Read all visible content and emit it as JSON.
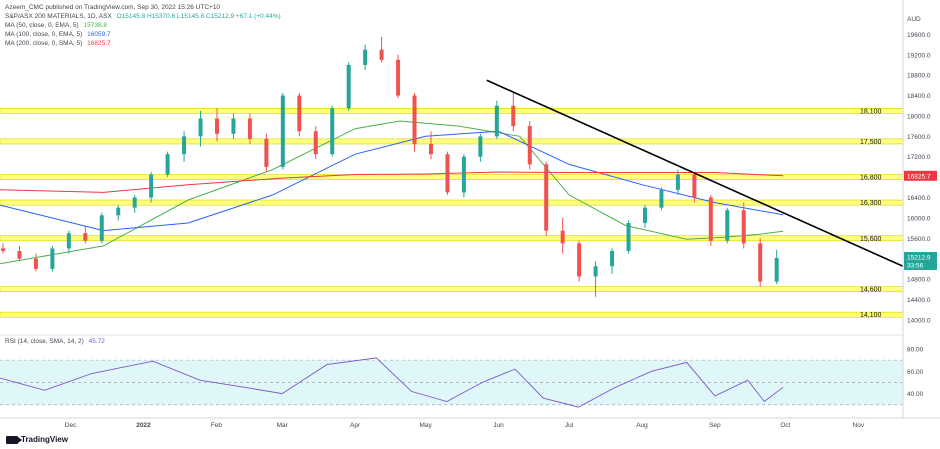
{
  "header": {
    "publisher": "Azeem_CMC published on TradingView.com, Sep 30, 2022 15:26 UTC+10",
    "symbol_line": {
      "name": "S&P/ASX 200 MATERIALS, 1D, ASX",
      "ohlc": "O15145.8 H15370.6 L15145.8 C15212.9 +67.1 (+0.44%)",
      "color": "#26a69a"
    },
    "indicators": [
      {
        "label": "MA (50, close, 0, EMA, 5)",
        "value": "15738.8",
        "color": "#4caf50"
      },
      {
        "label": "MA (100, close, 0, EMA, 5)",
        "value": "16059.7",
        "color": "#2962ff"
      },
      {
        "label": "MA (200, close, 0, SMA, 5)",
        "value": "16825.7",
        "color": "#f23645"
      }
    ]
  },
  "footer": {
    "logo_text": "TradingView"
  },
  "colors": {
    "up": "#26a69a",
    "down": "#ef5350",
    "zone": "#ffff80",
    "zone_border": "#d8d200",
    "trendline": "#000000",
    "rsi": "#7e57c2",
    "rsi_band": "#e0f7fa"
  },
  "chart_data": {
    "type": "candlestick",
    "currency": "AUD",
    "price_axis": {
      "ticks": [
        "19600.0",
        "19200.0",
        "18800.0",
        "18400.0",
        "18000.0",
        "17600.0",
        "17200.0",
        "16800.0",
        "16400.0",
        "16000.0",
        "15600.0",
        "15200.0",
        "14800.0",
        "14400.0",
        "14000.0"
      ],
      "ylim": [
        13800,
        20000
      ]
    },
    "time_axis": {
      "ticks": [
        {
          "label": "Dec",
          "date": "2021-12-01"
        },
        {
          "label": "2022",
          "date": "2022-01-01"
        },
        {
          "label": "Feb",
          "date": "2022-02-01"
        },
        {
          "label": "Mar",
          "date": "2022-03-01"
        },
        {
          "label": "Apr",
          "date": "2022-04-01"
        },
        {
          "label": "May",
          "date": "2022-05-01"
        },
        {
          "label": "Jun",
          "date": "2022-06-01"
        },
        {
          "label": "Jul",
          "date": "2022-07-01"
        },
        {
          "label": "Aug",
          "date": "2022-08-01"
        },
        {
          "label": "Sep",
          "date": "2022-09-01"
        },
        {
          "label": "Oct",
          "date": "2022-10-01"
        },
        {
          "label": "Nov",
          "date": "2022-11-01"
        }
      ],
      "xlim": [
        "2021-11-01",
        "2022-11-20"
      ]
    },
    "candles": [
      [
        "2021-11-01",
        15400,
        15500,
        15300,
        15350
      ],
      [
        "2021-11-08",
        15350,
        15450,
        15150,
        15200
      ],
      [
        "2021-11-15",
        15200,
        15300,
        14950,
        15000
      ],
      [
        "2021-11-22",
        15000,
        15450,
        14950,
        15400
      ],
      [
        "2021-11-29",
        15400,
        15750,
        15300,
        15700
      ],
      [
        "2021-12-06",
        15700,
        15850,
        15500,
        15550
      ],
      [
        "2021-12-13",
        15550,
        16100,
        15500,
        16050
      ],
      [
        "2021-12-20",
        16050,
        16250,
        15950,
        16200
      ],
      [
        "2021-12-27",
        16200,
        16450,
        16100,
        16400
      ],
      [
        "2022-01-03",
        16400,
        16900,
        16300,
        16850
      ],
      [
        "2022-01-10",
        16850,
        17300,
        16800,
        17250
      ],
      [
        "2022-01-17",
        17250,
        17700,
        17100,
        17600
      ],
      [
        "2022-01-24",
        17600,
        18100,
        17400,
        17950
      ],
      [
        "2022-01-31",
        17950,
        18150,
        17500,
        17650
      ],
      [
        "2022-02-07",
        17650,
        18050,
        17550,
        17950
      ],
      [
        "2022-02-14",
        17950,
        18050,
        17450,
        17550
      ],
      [
        "2022-02-21",
        17550,
        17650,
        16900,
        17000
      ],
      [
        "2022-02-28",
        17000,
        18450,
        16950,
        18400
      ],
      [
        "2022-03-07",
        18400,
        18450,
        17600,
        17700
      ],
      [
        "2022-03-14",
        17700,
        17800,
        17150,
        17250
      ],
      [
        "2022-03-21",
        17250,
        18200,
        17200,
        18150
      ],
      [
        "2022-03-28",
        18150,
        19050,
        18100,
        19000
      ],
      [
        "2022-04-04",
        19000,
        19400,
        18900,
        19300
      ],
      [
        "2022-04-11",
        19300,
        19550,
        19050,
        19100
      ],
      [
        "2022-04-18",
        19100,
        19200,
        18350,
        18400
      ],
      [
        "2022-04-25",
        18400,
        18450,
        17300,
        17450
      ],
      [
        "2022-05-02",
        17450,
        17700,
        17150,
        17250
      ],
      [
        "2022-05-09",
        17250,
        17300,
        16450,
        16500
      ],
      [
        "2022-05-16",
        16500,
        17250,
        16400,
        17200
      ],
      [
        "2022-05-23",
        17200,
        17650,
        17100,
        17600
      ],
      [
        "2022-05-30",
        17600,
        18300,
        17550,
        18200
      ],
      [
        "2022-06-06",
        18200,
        18450,
        17700,
        17800
      ],
      [
        "2022-06-13",
        17800,
        17900,
        16950,
        17050
      ],
      [
        "2022-06-20",
        17050,
        17100,
        15650,
        15750
      ],
      [
        "2022-06-27",
        15750,
        16000,
        15300,
        15500
      ],
      [
        "2022-07-04",
        15500,
        15550,
        14750,
        14850
      ],
      [
        "2022-07-11",
        14850,
        15150,
        14450,
        15050
      ],
      [
        "2022-07-18",
        15050,
        15400,
        14900,
        15350
      ],
      [
        "2022-07-25",
        15350,
        15950,
        15300,
        15900
      ],
      [
        "2022-08-01",
        15900,
        16250,
        15800,
        16200
      ],
      [
        "2022-08-08",
        16200,
        16600,
        16150,
        16550
      ],
      [
        "2022-08-15",
        16550,
        16950,
        16450,
        16850
      ],
      [
        "2022-08-22",
        16850,
        16900,
        16300,
        16400
      ],
      [
        "2022-08-29",
        16400,
        16450,
        15450,
        15550
      ],
      [
        "2022-09-05",
        15550,
        16200,
        15500,
        16150
      ],
      [
        "2022-09-12",
        16150,
        16300,
        15400,
        15500
      ],
      [
        "2022-09-19",
        15500,
        15600,
        14650,
        14750
      ],
      [
        "2022-09-26",
        14750,
        15370,
        14700,
        15213
      ]
    ],
    "series": [
      {
        "name": "MA (50, close, 0, EMA, 5)",
        "color": "#4caf50",
        "x": [
          "2021-11-01",
          "2021-12-15",
          "2022-01-20",
          "2022-02-25",
          "2022-04-01",
          "2022-04-20",
          "2022-05-15",
          "2022-06-10",
          "2022-07-01",
          "2022-07-25",
          "2022-08-20",
          "2022-09-05",
          "2022-09-20",
          "2022-09-30"
        ],
        "y": [
          15100,
          15450,
          16350,
          16950,
          17750,
          17900,
          17800,
          17600,
          16450,
          15850,
          15580,
          15620,
          15680,
          15739
        ]
      },
      {
        "name": "MA (100, close, 0, EMA, 5)",
        "color": "#2962ff",
        "x": [
          "2021-11-01",
          "2021-12-15",
          "2022-01-20",
          "2022-02-25",
          "2022-04-01",
          "2022-05-01",
          "2022-06-01",
          "2022-07-01",
          "2022-08-01",
          "2022-09-01",
          "2022-09-30"
        ],
        "y": [
          16250,
          15750,
          15900,
          16450,
          17250,
          17600,
          17700,
          17050,
          16650,
          16300,
          16060
        ]
      },
      {
        "name": "MA (200, close, 0, SMA, 5)",
        "color": "#f23645",
        "x": [
          "2021-11-01",
          "2021-12-15",
          "2022-01-20",
          "2022-03-01",
          "2022-04-01",
          "2022-05-01",
          "2022-06-01",
          "2022-07-01",
          "2022-08-01",
          "2022-09-01",
          "2022-09-30"
        ],
        "y": [
          16550,
          16500,
          16650,
          16780,
          16850,
          16860,
          16900,
          16890,
          16890,
          16890,
          16826
        ]
      }
    ],
    "horizontal_zones": [
      {
        "label": "18,100",
        "value": 18100
      },
      {
        "label": "17,500",
        "value": 17500
      },
      {
        "label": "16,800",
        "value": 16800
      },
      {
        "label": "16,300",
        "value": 16300
      },
      {
        "label": "15,600",
        "value": 15600
      },
      {
        "label": "14,600",
        "value": 14600
      },
      {
        "label": "14,100",
        "value": 14100
      }
    ],
    "trendline": {
      "from": {
        "date": "2022-05-27",
        "value": 18700
      },
      "to": {
        "date": "2022-11-20",
        "value": 15050
      }
    },
    "last_price": {
      "value": "15212.9",
      "countdown": "33:56",
      "color": "#26a69a"
    },
    "ma200_label": {
      "value": "16825.7",
      "color": "#f23645"
    },
    "rsi": {
      "label": "RSI (14, close, SMA, 14, 2)",
      "value": "45.72",
      "ticks": [
        "80.00",
        "60.00",
        "40.00"
      ],
      "bands": [
        30,
        70
      ],
      "ylim": [
        20,
        88
      ],
      "x": [
        "2021-11-01",
        "2021-11-20",
        "2021-12-10",
        "2022-01-05",
        "2022-01-25",
        "2022-02-15",
        "2022-03-01",
        "2022-03-20",
        "2022-04-10",
        "2022-04-25",
        "2022-05-10",
        "2022-05-25",
        "2022-06-08",
        "2022-06-20",
        "2022-07-05",
        "2022-07-20",
        "2022-08-05",
        "2022-08-20",
        "2022-09-01",
        "2022-09-15",
        "2022-09-22",
        "2022-09-30"
      ],
      "y": [
        54,
        43,
        58,
        69,
        52,
        45,
        40,
        66,
        72,
        42,
        33,
        50,
        62,
        36,
        28,
        45,
        60,
        68,
        38,
        52,
        33,
        45.72
      ]
    }
  }
}
